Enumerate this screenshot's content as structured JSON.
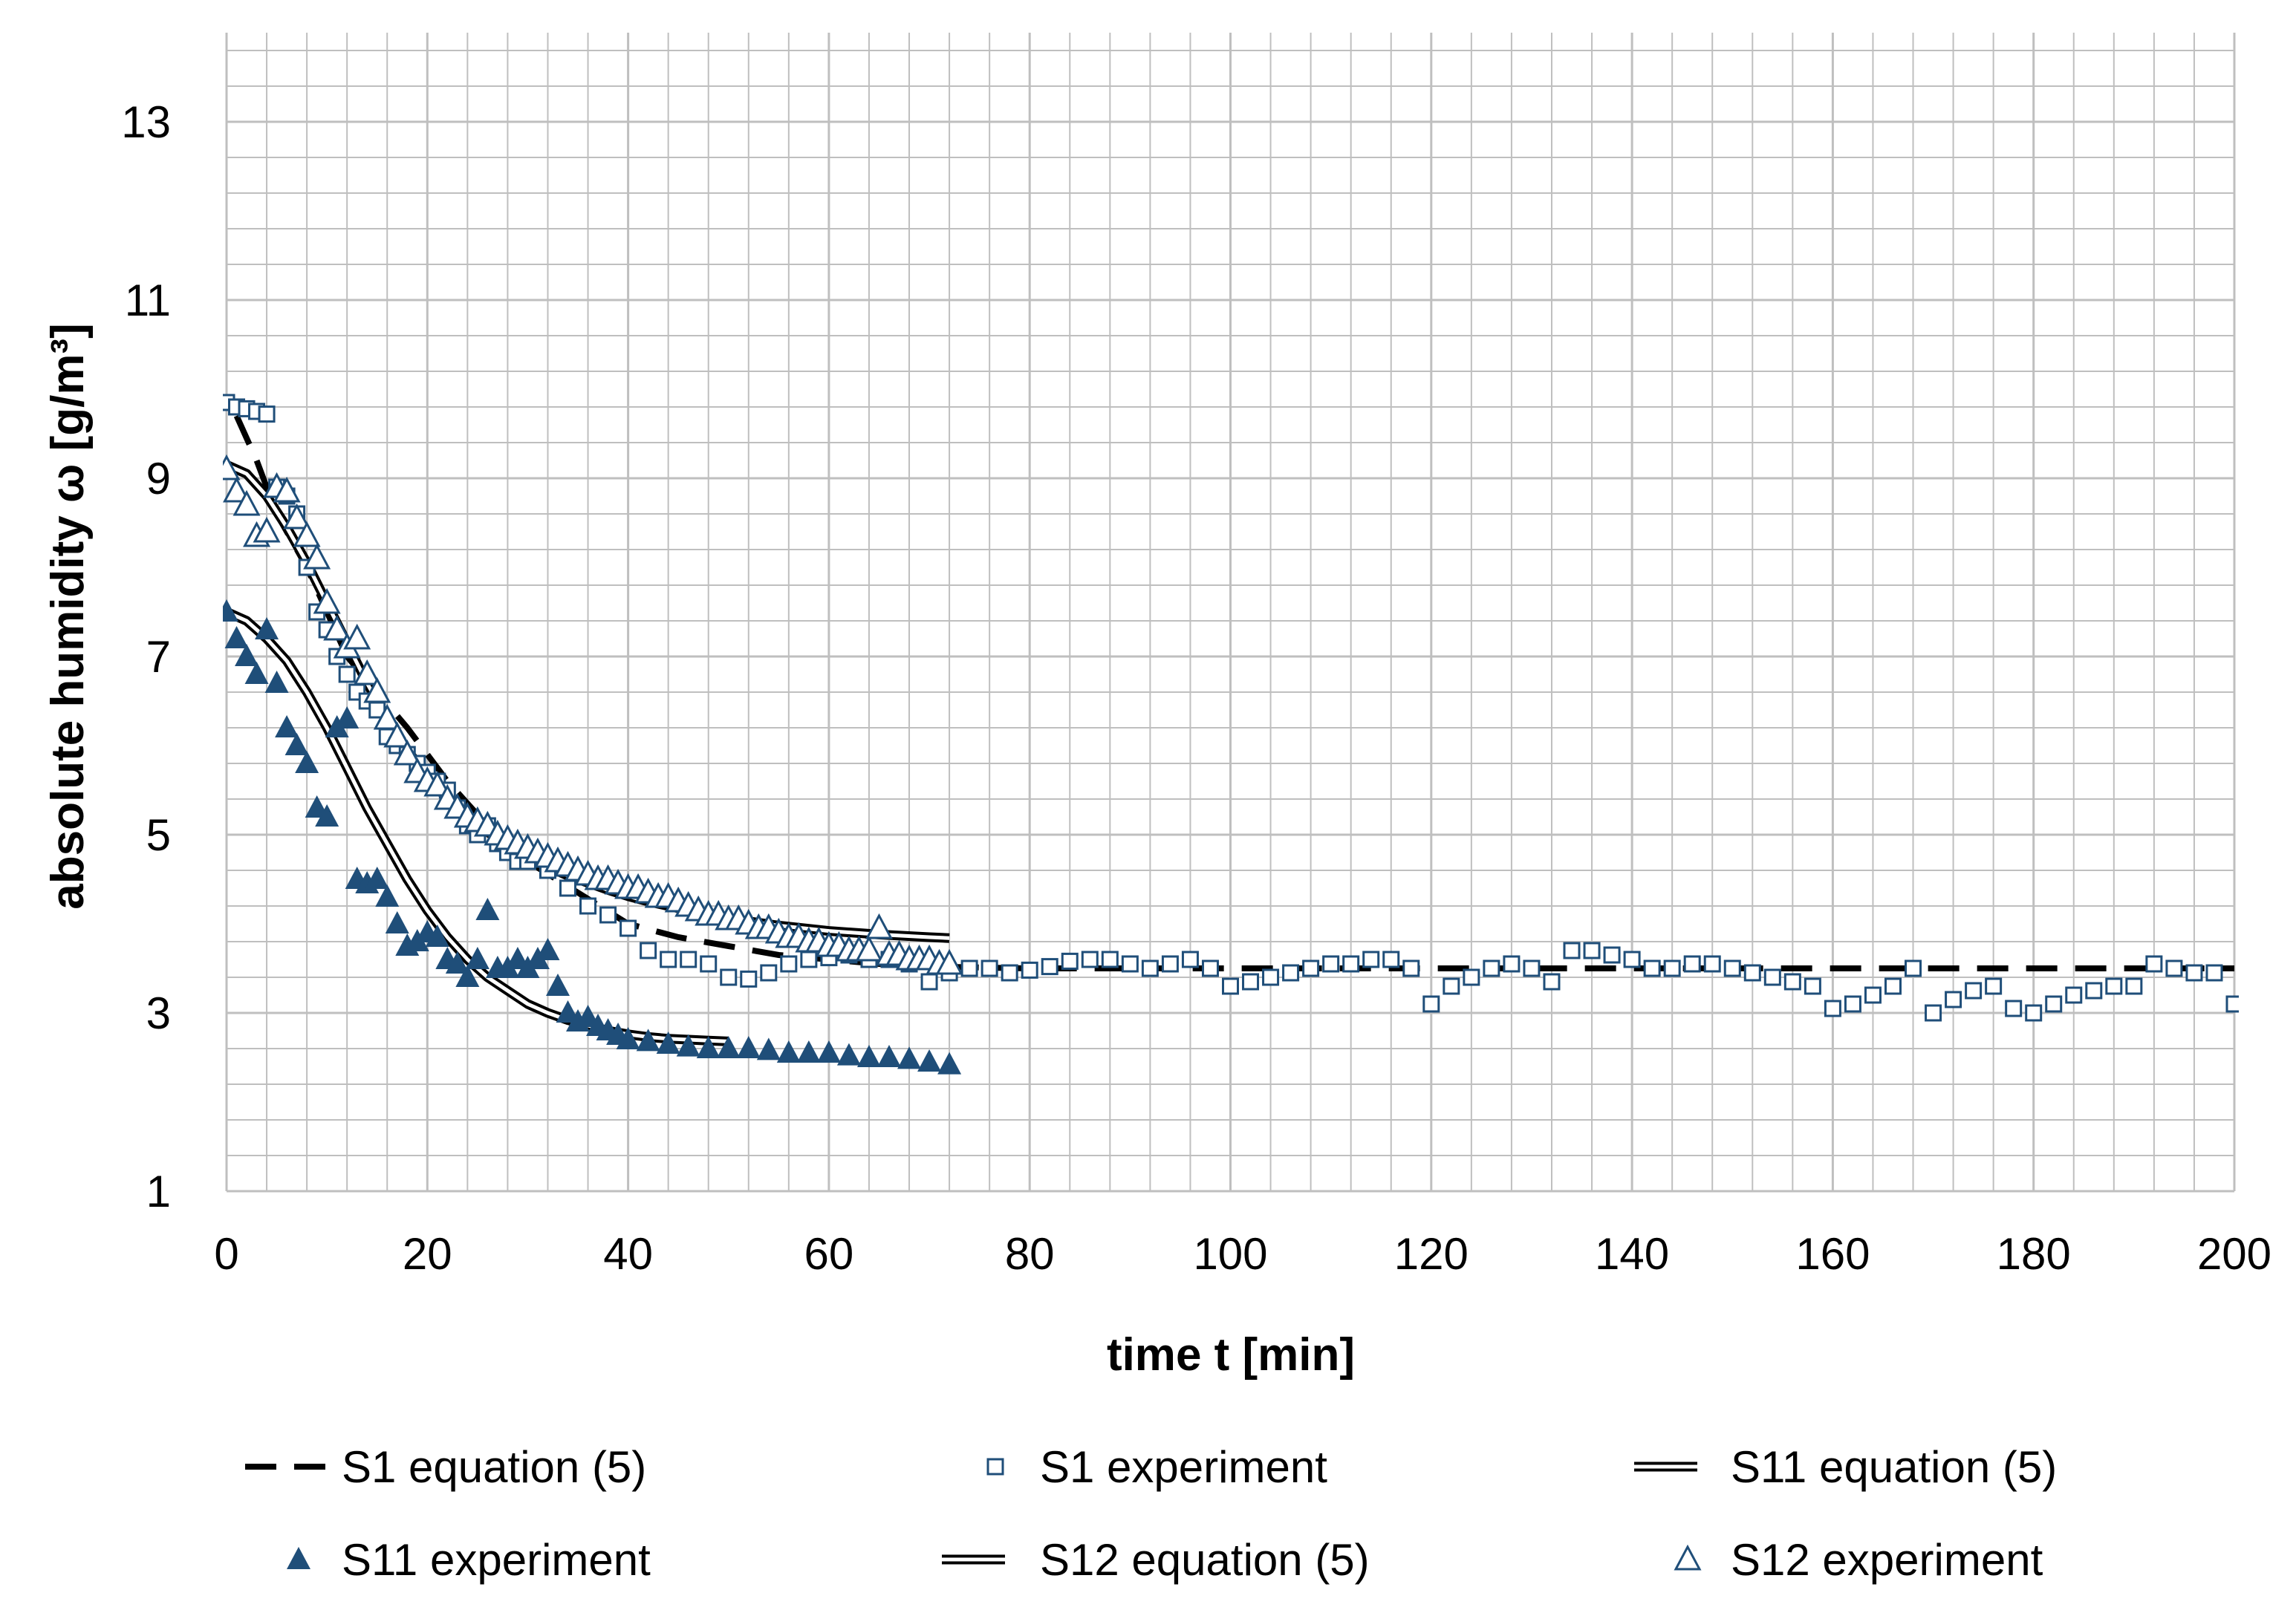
{
  "chart_data": {
    "type": "scatter",
    "xlabel": "time t [min]",
    "ylabel": "absolute humidity ω [g/m³]",
    "xlim": [
      0,
      200
    ],
    "ylim": [
      1,
      14
    ],
    "x_ticks": [
      0,
      20,
      40,
      60,
      80,
      100,
      120,
      140,
      160,
      180,
      200
    ],
    "y_ticks": [
      1,
      3,
      5,
      7,
      9,
      11,
      13
    ],
    "x_tick_labels": [
      "0",
      "20",
      "40",
      "60",
      "80",
      "100",
      "120",
      "140",
      "160",
      "180",
      "200"
    ],
    "y_tick_labels": [
      "1",
      "3",
      "5",
      "7",
      "9",
      "11",
      "13"
    ],
    "grid": true,
    "legend_position": "bottom",
    "colors": {
      "marker": "#1f4e79",
      "line": "#000000",
      "grid": "#bfbfbf"
    },
    "series": [
      {
        "name": "S1 equation (5)",
        "style": "dashed-line",
        "x": [
          1,
          3,
          5,
          8,
          10,
          12,
          15,
          18,
          22,
          26,
          30,
          35,
          40,
          45,
          50,
          55,
          60,
          65,
          70,
          80,
          100,
          130,
          160,
          200
        ],
        "y": [
          9.7,
          9.2,
          8.6,
          8.0,
          7.5,
          7.0,
          6.6,
          6.2,
          5.6,
          5.1,
          4.7,
          4.35,
          4.0,
          3.85,
          3.75,
          3.65,
          3.6,
          3.55,
          3.52,
          3.5,
          3.5,
          3.5,
          3.5,
          3.5
        ]
      },
      {
        "name": "S1 experiment",
        "style": "open-square",
        "x": [
          0,
          1,
          2,
          3,
          4,
          5,
          6,
          7,
          8,
          9,
          10,
          11,
          12,
          13,
          14,
          15,
          16,
          17,
          18,
          19,
          20,
          21,
          22,
          23,
          24,
          25,
          26,
          27,
          28,
          29,
          30,
          32,
          34,
          36,
          38,
          40,
          42,
          44,
          46,
          48,
          50,
          52,
          54,
          56,
          58,
          60,
          62,
          64,
          66,
          68,
          70,
          72,
          74,
          76,
          78,
          80,
          82,
          84,
          86,
          88,
          90,
          92,
          94,
          96,
          98,
          100,
          102,
          104,
          106,
          108,
          110,
          112,
          114,
          116,
          118,
          120,
          122,
          124,
          126,
          128,
          130,
          132,
          134,
          136,
          138,
          140,
          142,
          144,
          146,
          148,
          150,
          152,
          154,
          156,
          158,
          160,
          162,
          164,
          166,
          168,
          170,
          172,
          174,
          176,
          178,
          180,
          182,
          184,
          186,
          188,
          190,
          192,
          194,
          196,
          198,
          200
        ],
        "y": [
          9.85,
          9.8,
          9.78,
          9.75,
          9.72,
          8.9,
          8.8,
          8.6,
          8.0,
          7.5,
          7.3,
          7.0,
          6.8,
          6.6,
          6.5,
          6.4,
          6.1,
          6.0,
          5.9,
          5.8,
          5.7,
          5.6,
          5.5,
          5.3,
          5.1,
          5.0,
          5.1,
          4.9,
          4.8,
          4.7,
          4.7,
          4.6,
          4.4,
          4.2,
          4.1,
          3.95,
          3.7,
          3.6,
          3.6,
          3.55,
          3.4,
          3.38,
          3.45,
          3.55,
          3.6,
          3.62,
          3.65,
          3.6,
          3.6,
          3.55,
          3.35,
          3.45,
          3.5,
          3.5,
          3.45,
          3.48,
          3.52,
          3.58,
          3.6,
          3.6,
          3.55,
          3.5,
          3.55,
          3.6,
          3.5,
          3.3,
          3.35,
          3.4,
          3.45,
          3.5,
          3.55,
          3.55,
          3.6,
          3.6,
          3.5,
          3.1,
          3.3,
          3.4,
          3.5,
          3.55,
          3.5,
          3.35,
          3.7,
          3.7,
          3.65,
          3.6,
          3.5,
          3.5,
          3.55,
          3.55,
          3.5,
          3.45,
          3.4,
          3.35,
          3.3,
          3.05,
          3.1,
          3.2,
          3.3,
          3.5,
          3.0,
          3.15,
          3.25,
          3.3,
          3.05,
          3.0,
          3.1,
          3.2,
          3.25,
          3.3,
          3.3,
          3.55,
          3.5,
          3.45,
          3.45,
          3.1
        ]
      },
      {
        "name": "S11 equation (5)",
        "style": "double-line",
        "x": [
          0,
          2,
          4,
          6,
          8,
          10,
          12,
          14,
          16,
          18,
          20,
          22,
          24,
          26,
          28,
          30,
          32,
          34,
          36,
          38,
          40,
          42,
          44,
          46,
          48,
          50
        ],
        "y": [
          7.5,
          7.4,
          7.2,
          6.95,
          6.6,
          6.2,
          5.75,
          5.3,
          4.9,
          4.5,
          4.15,
          3.85,
          3.6,
          3.4,
          3.25,
          3.1,
          3.0,
          2.92,
          2.86,
          2.8,
          2.76,
          2.73,
          2.71,
          2.7,
          2.69,
          2.68
        ]
      },
      {
        "name": "S11 experiment",
        "style": "filled-triangle",
        "x": [
          0,
          1,
          2,
          3,
          4,
          5,
          6,
          7,
          8,
          9,
          10,
          11,
          12,
          13,
          14,
          15,
          16,
          17,
          18,
          19,
          20,
          21,
          22,
          23,
          24,
          25,
          26,
          27,
          28,
          29,
          30,
          31,
          32,
          33,
          34,
          35,
          36,
          37,
          38,
          39,
          40,
          42,
          44,
          46,
          48,
          50,
          52,
          54,
          56,
          58,
          60,
          62,
          64,
          66,
          68,
          70,
          72
        ],
        "y": [
          7.5,
          7.2,
          7.0,
          6.8,
          7.3,
          6.7,
          6.2,
          6.0,
          5.8,
          5.3,
          5.2,
          6.2,
          6.3,
          4.5,
          4.45,
          4.5,
          4.3,
          4.0,
          3.75,
          3.8,
          3.9,
          3.85,
          3.6,
          3.55,
          3.4,
          3.6,
          4.15,
          3.5,
          3.5,
          3.6,
          3.5,
          3.6,
          3.7,
          3.3,
          3.0,
          2.9,
          2.95,
          2.85,
          2.8,
          2.75,
          2.7,
          2.68,
          2.65,
          2.62,
          2.6,
          2.6,
          2.6,
          2.58,
          2.55,
          2.55,
          2.55,
          2.52,
          2.5,
          2.5,
          2.48,
          2.45,
          2.42
        ]
      },
      {
        "name": "S12 equation (5)",
        "style": "double-line",
        "x": [
          0,
          2,
          4,
          6,
          8,
          10,
          12,
          14,
          16,
          18,
          20,
          22,
          24,
          26,
          28,
          30,
          32,
          34,
          36,
          38,
          40,
          42,
          44,
          46,
          48,
          50,
          55,
          60,
          65,
          70,
          72
        ],
        "y": [
          9.15,
          9.05,
          8.8,
          8.45,
          8.05,
          7.6,
          7.15,
          6.7,
          6.3,
          5.95,
          5.65,
          5.4,
          5.2,
          5.03,
          4.88,
          4.75,
          4.64,
          4.54,
          4.46,
          4.38,
          4.31,
          4.25,
          4.2,
          4.15,
          4.1,
          4.06,
          3.98,
          3.92,
          3.88,
          3.85,
          3.84
        ]
      },
      {
        "name": "S12 experiment",
        "style": "open-triangle",
        "x": [
          0,
          1,
          2,
          3,
          4,
          5,
          6,
          7,
          8,
          9,
          10,
          11,
          12,
          13,
          14,
          15,
          16,
          17,
          18,
          19,
          20,
          21,
          22,
          23,
          24,
          25,
          26,
          27,
          28,
          29,
          30,
          31,
          32,
          33,
          34,
          35,
          36,
          37,
          38,
          39,
          40,
          41,
          42,
          43,
          44,
          45,
          46,
          47,
          48,
          49,
          50,
          51,
          52,
          53,
          54,
          55,
          56,
          57,
          58,
          59,
          60,
          61,
          62,
          63,
          64,
          65,
          66,
          67,
          68,
          69,
          70,
          71,
          72
        ],
        "y": [
          9.1,
          8.85,
          8.7,
          8.35,
          8.4,
          8.9,
          8.85,
          8.55,
          8.35,
          8.1,
          7.6,
          7.3,
          7.1,
          7.2,
          6.8,
          6.6,
          6.3,
          6.1,
          5.9,
          5.7,
          5.6,
          5.55,
          5.4,
          5.3,
          5.2,
          5.15,
          5.1,
          5.0,
          4.95,
          4.9,
          4.85,
          4.8,
          4.75,
          4.7,
          4.65,
          4.6,
          4.55,
          4.5,
          4.5,
          4.45,
          4.4,
          4.4,
          4.35,
          4.3,
          4.3,
          4.25,
          4.2,
          4.15,
          4.1,
          4.1,
          4.05,
          4.05,
          4.0,
          3.95,
          3.95,
          3.9,
          3.85,
          3.85,
          3.8,
          3.8,
          3.75,
          3.75,
          3.7,
          3.7,
          3.7,
          3.95,
          3.65,
          3.65,
          3.6,
          3.6,
          3.6,
          3.55,
          3.55
        ]
      }
    ]
  }
}
